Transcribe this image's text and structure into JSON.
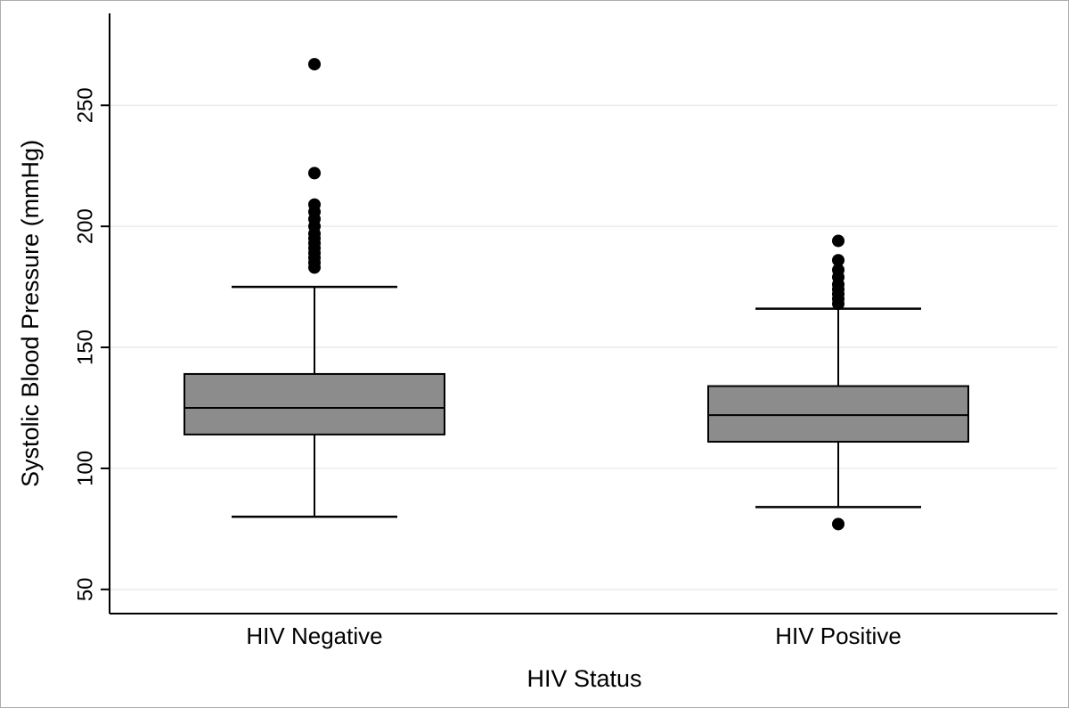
{
  "figure": {
    "background": "#ffffff",
    "border_color": "#adadad"
  },
  "chart_data": {
    "type": "boxplot",
    "title": "",
    "xlabel": "HIV Status",
    "ylabel": "Systolic Blood Pressure (mmHg)",
    "ylim": [
      40,
      288
    ],
    "yticks": [
      50,
      100,
      150,
      200,
      250
    ],
    "grid": true,
    "grid_color": "#e2e2e2",
    "axis_color": "#000000",
    "box_fill": "#8c8c8c",
    "box_border": "#000000",
    "median_color": "#000000",
    "outlier_color": "#000000",
    "legend_position": "none",
    "groups": [
      {
        "label": "HIV Negative",
        "whisker_low": 80,
        "q1": 114,
        "median": 125,
        "q3": 139,
        "whisker_high": 175,
        "outliers": [
          183,
          185,
          187,
          189,
          191,
          193,
          195,
          197,
          200,
          203,
          206,
          209,
          222,
          267
        ]
      },
      {
        "label": "HIV Positive",
        "whisker_low": 84,
        "q1": 111,
        "median": 122,
        "q3": 134,
        "whisker_high": 166,
        "outliers": [
          77,
          168,
          170,
          172,
          174,
          176,
          179,
          182,
          186,
          194
        ]
      }
    ]
  }
}
